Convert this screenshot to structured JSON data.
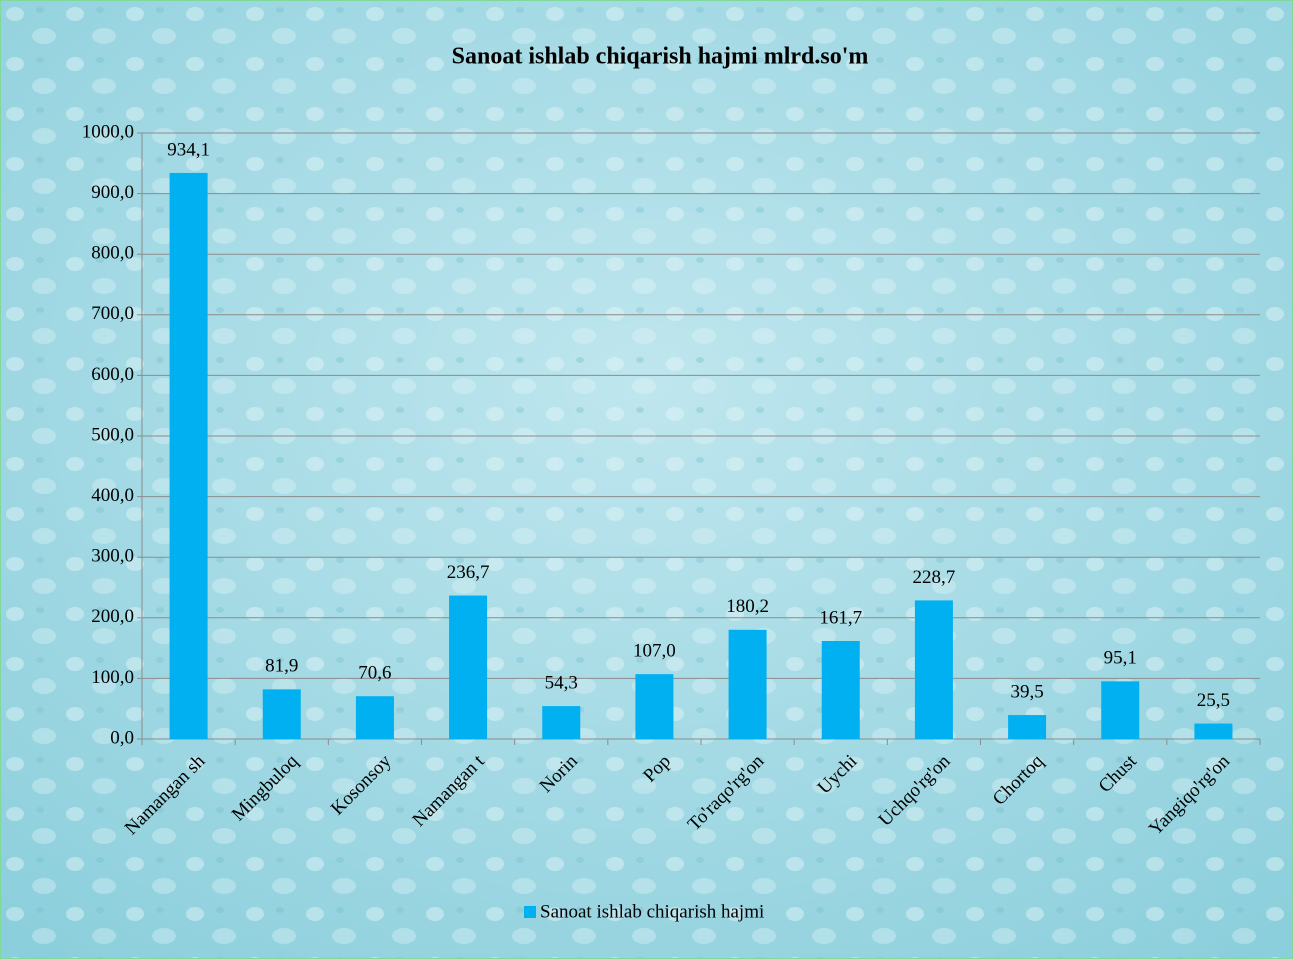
{
  "chart_data": {
    "type": "bar",
    "title": "Sanoat ishlab chiqarish hajmi mlrd.so'm",
    "categories": [
      "Namangan sh",
      "Mingbuloq",
      "Kosonsoy",
      "Namangan t",
      "Norin",
      "Pop",
      "To'raqo'rg'on",
      "Uychi",
      "Uchqo'rg'on",
      "Chortoq",
      "Chust",
      "Yangiqo'rg'on"
    ],
    "series": [
      {
        "name": "Sanoat ishlab chiqarish hajmi",
        "color": "#00b0f0",
        "values": [
          934.1,
          81.9,
          70.6,
          236.7,
          54.3,
          107.0,
          180.2,
          161.7,
          228.7,
          39.5,
          95.1,
          25.5
        ],
        "value_labels": [
          "934,1",
          "81,9",
          "70,6",
          "236,7",
          "54,3",
          "107,0",
          "180,2",
          "161,7",
          "228,7",
          "39,5",
          "95,1",
          "25,5"
        ]
      }
    ],
    "ylim": [
      0,
      1000
    ],
    "yticks": [
      {
        "value": 0,
        "label": "0,0"
      },
      {
        "value": 100,
        "label": "100,0"
      },
      {
        "value": 200,
        "label": "200,0"
      },
      {
        "value": 300,
        "label": "300,0"
      },
      {
        "value": 400,
        "label": "400,0"
      },
      {
        "value": 500,
        "label": "500,0"
      },
      {
        "value": 600,
        "label": "600,0"
      },
      {
        "value": 700,
        "label": "700,0"
      },
      {
        "value": 800,
        "label": "800,0"
      },
      {
        "value": 900,
        "label": "900,0"
      },
      {
        "value": 1000,
        "label": "1000,0"
      }
    ],
    "grid": true,
    "legend": "bottom"
  }
}
